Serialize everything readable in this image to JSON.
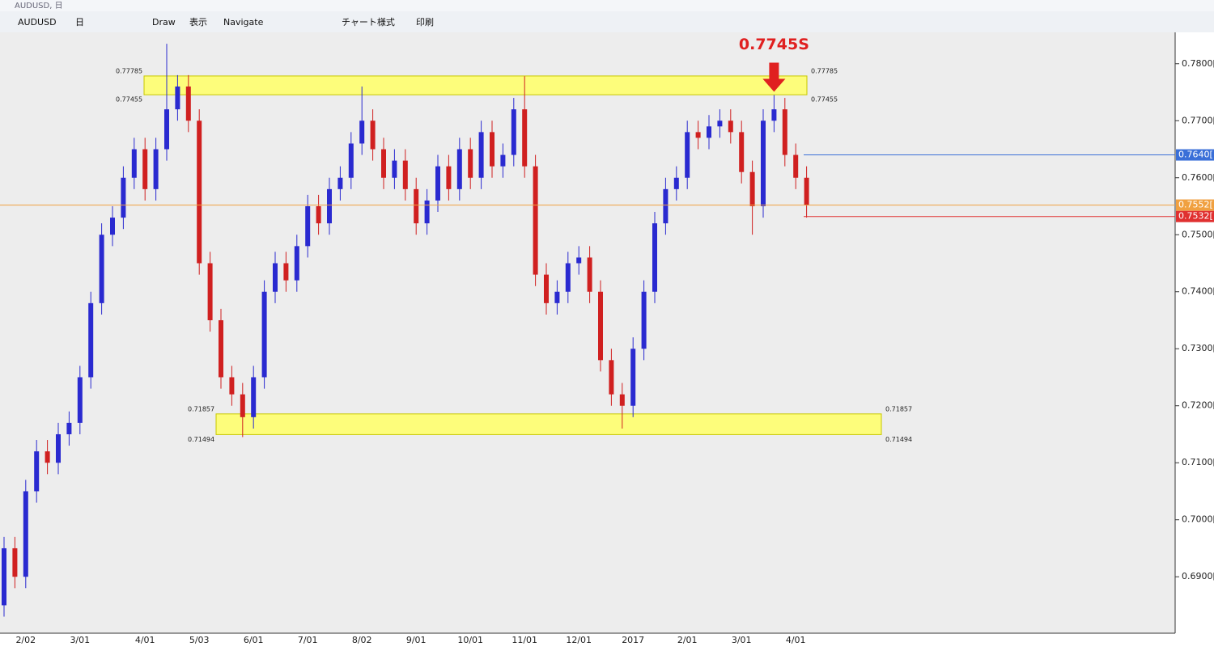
{
  "window": {
    "title": "AUDUSD, 日",
    "toolbar": [
      "AUDUSD",
      "日",
      "Draw",
      "表示",
      "Navigate",
      "チャート様式",
      "印刷"
    ]
  },
  "chart_data": {
    "type": "candlestick",
    "categories": [
      null,
      null,
      "2/02",
      null,
      null,
      null,
      null,
      "3/01",
      null,
      null,
      null,
      null,
      null,
      "4/01",
      null,
      null,
      null,
      null,
      "5/03",
      null,
      null,
      null,
      null,
      "6/01",
      null,
      null,
      null,
      null,
      "7/01",
      null,
      null,
      null,
      null,
      "8/02",
      null,
      null,
      null,
      null,
      "9/01",
      null,
      null,
      null,
      null,
      "10/01",
      null,
      null,
      null,
      null,
      "11/01",
      null,
      null,
      null,
      null,
      "12/01",
      null,
      null,
      null,
      null,
      "2017",
      null,
      null,
      null,
      null,
      "2/01",
      null,
      null,
      null,
      null,
      "3/01",
      null,
      null,
      null,
      null,
      "4/01",
      null
    ],
    "open": [
      0.685,
      0.695,
      0.69,
      0.705,
      0.712,
      0.71,
      0.715,
      0.717,
      0.725,
      0.738,
      0.75,
      0.753,
      0.76,
      0.765,
      0.758,
      0.765,
      0.772,
      0.776,
      0.77,
      0.745,
      0.735,
      0.725,
      0.722,
      0.718,
      0.725,
      0.74,
      0.745,
      0.742,
      0.748,
      0.755,
      0.752,
      0.758,
      0.76,
      0.766,
      0.77,
      0.765,
      0.76,
      0.763,
      0.758,
      0.752,
      0.756,
      0.762,
      0.758,
      0.765,
      0.76,
      0.768,
      0.762,
      0.764,
      0.772,
      0.762,
      0.743,
      0.738,
      0.74,
      0.745,
      0.746,
      0.74,
      0.728,
      0.722,
      0.72,
      0.73,
      0.74,
      0.752,
      0.758,
      0.76,
      0.768,
      0.767,
      0.769,
      0.77,
      0.768,
      0.761,
      0.755,
      0.77,
      0.772,
      0.764,
      0.76
    ],
    "high": [
      0.697,
      0.697,
      0.707,
      0.714,
      0.714,
      0.717,
      0.719,
      0.727,
      0.74,
      0.752,
      0.755,
      0.762,
      0.767,
      0.767,
      0.767,
      0.7835,
      0.778,
      0.778,
      0.772,
      0.747,
      0.737,
      0.727,
      0.724,
      0.727,
      0.742,
      0.747,
      0.747,
      0.75,
      0.757,
      0.757,
      0.76,
      0.762,
      0.768,
      0.776,
      0.772,
      0.767,
      0.765,
      0.765,
      0.76,
      0.758,
      0.764,
      0.764,
      0.767,
      0.767,
      0.77,
      0.77,
      0.766,
      0.774,
      0.7778,
      0.764,
      0.745,
      0.742,
      0.747,
      0.748,
      0.748,
      0.742,
      0.73,
      0.724,
      0.732,
      0.742,
      0.754,
      0.76,
      0.762,
      0.77,
      0.77,
      0.771,
      0.772,
      0.772,
      0.77,
      0.763,
      0.772,
      0.7745,
      0.774,
      0.766,
      0.762
    ],
    "low": [
      0.683,
      0.688,
      0.688,
      0.703,
      0.708,
      0.708,
      0.713,
      0.715,
      0.723,
      0.736,
      0.748,
      0.751,
      0.758,
      0.756,
      0.756,
      0.763,
      0.77,
      0.768,
      0.743,
      0.733,
      0.723,
      0.72,
      0.7145,
      0.716,
      0.723,
      0.738,
      0.74,
      0.74,
      0.746,
      0.75,
      0.75,
      0.756,
      0.758,
      0.764,
      0.763,
      0.758,
      0.758,
      0.756,
      0.75,
      0.75,
      0.754,
      0.756,
      0.756,
      0.758,
      0.758,
      0.76,
      0.76,
      0.762,
      0.76,
      0.741,
      0.736,
      0.736,
      0.738,
      0.743,
      0.738,
      0.726,
      0.72,
      0.716,
      0.718,
      0.728,
      0.738,
      0.75,
      0.756,
      0.758,
      0.765,
      0.765,
      0.767,
      0.766,
      0.759,
      0.75,
      0.753,
      0.768,
      0.762,
      0.758,
      0.753
    ],
    "close": [
      0.695,
      0.69,
      0.705,
      0.712,
      0.71,
      0.715,
      0.717,
      0.725,
      0.738,
      0.75,
      0.753,
      0.76,
      0.765,
      0.758,
      0.765,
      0.772,
      0.776,
      0.77,
      0.745,
      0.735,
      0.725,
      0.722,
      0.718,
      0.725,
      0.74,
      0.745,
      0.742,
      0.748,
      0.755,
      0.752,
      0.758,
      0.76,
      0.766,
      0.77,
      0.765,
      0.76,
      0.763,
      0.758,
      0.752,
      0.756,
      0.762,
      0.758,
      0.765,
      0.76,
      0.768,
      0.762,
      0.764,
      0.772,
      0.762,
      0.743,
      0.738,
      0.74,
      0.745,
      0.746,
      0.74,
      0.728,
      0.722,
      0.72,
      0.73,
      0.74,
      0.752,
      0.758,
      0.76,
      0.768,
      0.767,
      0.769,
      0.77,
      0.768,
      0.761,
      0.755,
      0.77,
      0.772,
      0.764,
      0.76,
      0.7552
    ],
    "up_color": "#2a2ad0",
    "down_color": "#d02020",
    "ylim": [
      0.6801,
      0.7855
    ],
    "yticks": [
      {
        "value": 0.69,
        "label": "0.6900[0"
      },
      {
        "value": 0.7,
        "label": "0.7000[0"
      },
      {
        "value": 0.71,
        "label": "0.7100[0"
      },
      {
        "value": 0.72,
        "label": "0.7200[0"
      },
      {
        "value": 0.73,
        "label": "0.7300[0"
      },
      {
        "value": 0.74,
        "label": "0.7400[0"
      },
      {
        "value": 0.75,
        "label": "0.7500[0"
      },
      {
        "value": 0.76,
        "label": "0.7600[0"
      },
      {
        "value": 0.77,
        "label": "0.7700[0"
      },
      {
        "value": 0.78,
        "label": "0.7800[0"
      }
    ],
    "zones": [
      {
        "top": 0.77785,
        "bottom": 0.77455,
        "color": "#ffff66"
      },
      {
        "top": 0.71857,
        "bottom": 0.71494,
        "color": "#ffff66"
      }
    ],
    "levels": [
      {
        "value": 0.764,
        "label": "0.7640[",
        "color": "#3a6fd8"
      },
      {
        "value": 0.7552,
        "label": "0.7552[",
        "color": "#f0a040"
      },
      {
        "value": 0.7532,
        "label": "0.7532[",
        "color": "#e03030"
      }
    ],
    "annotation": {
      "text": "0.7745S",
      "color": "#e02020"
    }
  }
}
